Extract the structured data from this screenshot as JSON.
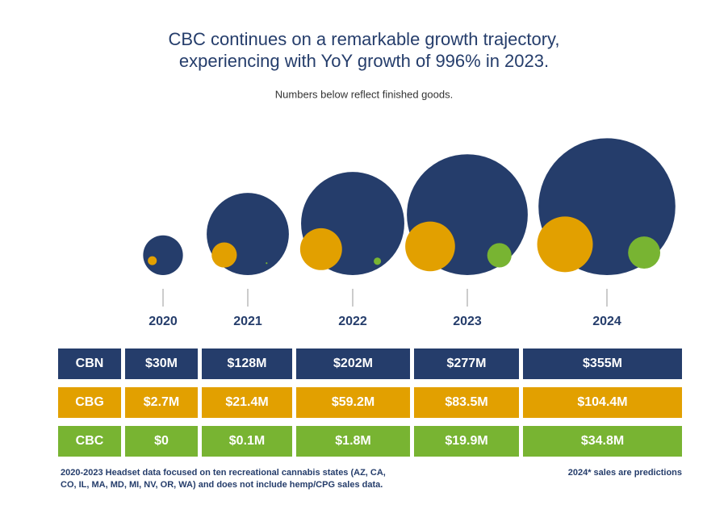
{
  "chart_data": {
    "type": "bubble",
    "title": [
      "CBC continues on a remarkable growth trajectory,",
      "experiencing with YoY growth of 996% in 2023."
    ],
    "subtitle": "Numbers below reflect finished goods.",
    "categories": [
      "2020",
      "2021",
      "2022",
      "2023",
      "2024"
    ],
    "series": [
      {
        "name": "CBN",
        "color": "#253d6b",
        "values": [
          30,
          128,
          202,
          277,
          355
        ],
        "value_labels": [
          "$30M",
          "$128M",
          "$202M",
          "$277M",
          "$355M"
        ]
      },
      {
        "name": "CBG",
        "color": "#e2a000",
        "values": [
          2.7,
          21.4,
          59.2,
          83.5,
          104.4
        ],
        "value_labels": [
          "$2.7M",
          "$21.4M",
          "$59.2M",
          "$83.5M",
          "$104.4M"
        ]
      },
      {
        "name": "CBC",
        "color": "#78b432",
        "values": [
          0,
          0.1,
          1.8,
          19.9,
          34.8
        ],
        "value_labels": [
          "$0",
          "$0.1M",
          "$1.8M",
          "$19.9M",
          "$34.8M"
        ]
      }
    ],
    "footnote_left": [
      "2020-2023 Headset data focused on ten recreational cannabis states (AZ, CA,",
      "CO, IL, MA, MD, MI, NV, OR, WA) and does not include hemp/CPG sales data."
    ],
    "footnote_right": "2024* sales are predictions"
  }
}
